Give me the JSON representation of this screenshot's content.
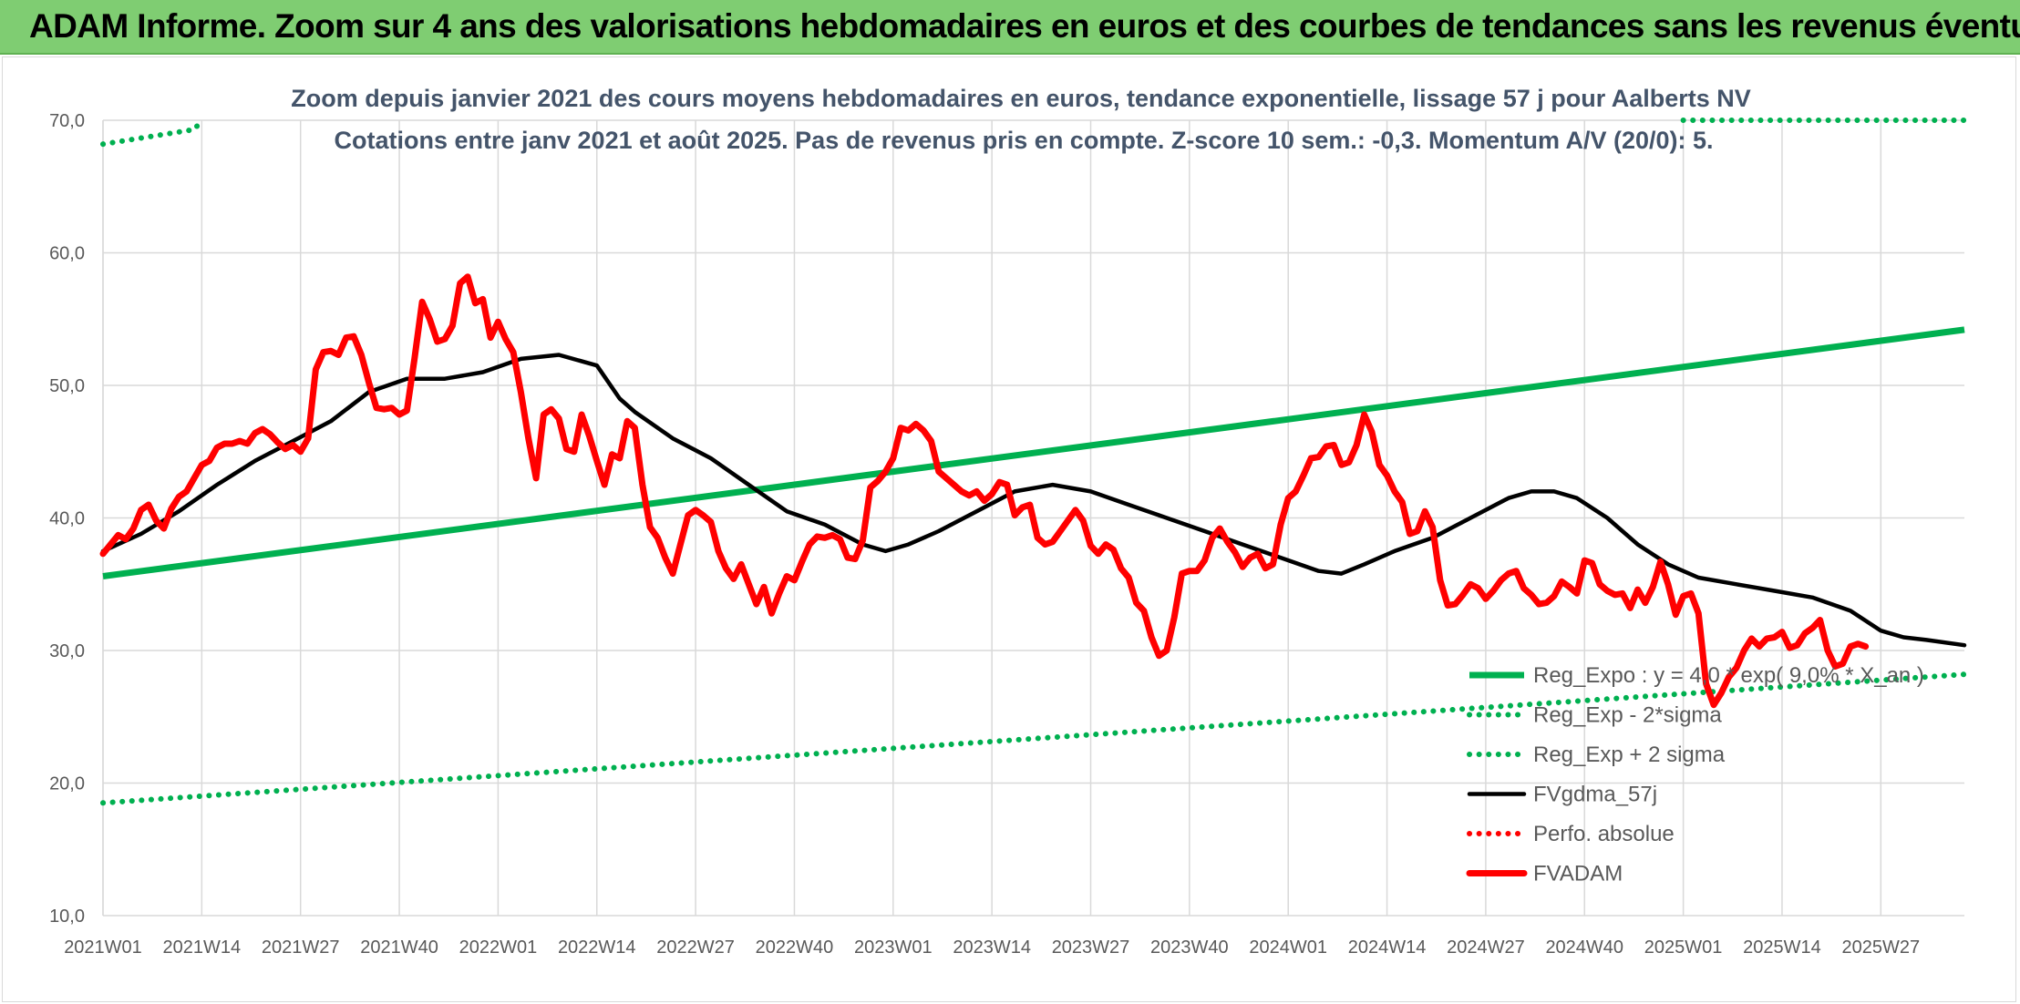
{
  "page_title": "ADAM Informe. Zoom sur 4 ans des valorisations hebdomadaires en euros et des courbes de tendances sans les revenus éventuels",
  "chart_data": {
    "type": "line",
    "title": "Zoom depuis janvier 2021 des cours moyens hebdomadaires en euros, tendance exponentielle, lissage 57 j pour Aalberts NV",
    "subtitle": "Cotations entre janv 2021 et août 2025. Pas de revenus pris en compte. Z-score 10 sem.: -0,3. Momentum A/V (20/0): 5.",
    "ylim": [
      10,
      70
    ],
    "y_ticks": [
      "10,0",
      "20,0",
      "30,0",
      "40,0",
      "50,0",
      "60,0",
      "70,0"
    ],
    "x_ticks": [
      "2021W01",
      "2021W14",
      "2021W27",
      "2021W40",
      "2022W01",
      "2022W14",
      "2022W27",
      "2022W40",
      "2023W01",
      "2023W14",
      "2023W27",
      "2023W40",
      "2024W01",
      "2024W14",
      "2024W27",
      "2024W40",
      "2025W01",
      "2025W14",
      "2025W27"
    ],
    "n_weeks": 246,
    "grid": true,
    "legend_position": "bottom-right",
    "series": [
      {
        "name": "Reg_Expo : y = 4,0 * exp( 9,0% * X_an )",
        "style": "solid-thick",
        "color": "#00b050",
        "points": [
          [
            0,
            35.6
          ],
          [
            245,
            54.2
          ]
        ]
      },
      {
        "name": "Reg_Exp - 2*sigma",
        "style": "dotted",
        "color": "#00b050",
        "points": [
          [
            0,
            18.5
          ],
          [
            245,
            28.2
          ]
        ]
      },
      {
        "name": "Reg_Exp + 2 sigma",
        "style": "dotted",
        "color": "#00b050",
        "points": [
          [
            0,
            68.2
          ],
          [
            12,
            69.3
          ],
          [
            13,
            70
          ]
        ],
        "right_segment": [
          [
            208,
            70
          ],
          [
            245,
            70
          ]
        ]
      },
      {
        "name": "FVgdma_57j",
        "style": "solid",
        "color": "#000000",
        "points": [
          [
            0,
            37.5
          ],
          [
            5,
            38.8
          ],
          [
            10,
            40.5
          ],
          [
            15,
            42.5
          ],
          [
            20,
            44.3
          ],
          [
            25,
            45.8
          ],
          [
            30,
            47.3
          ],
          [
            35,
            49.5
          ],
          [
            40,
            50.5
          ],
          [
            45,
            50.5
          ],
          [
            50,
            51.0
          ],
          [
            55,
            52.0
          ],
          [
            60,
            52.3
          ],
          [
            65,
            51.5
          ],
          [
            68,
            49.0
          ],
          [
            70,
            48.0
          ],
          [
            75,
            46.0
          ],
          [
            80,
            44.5
          ],
          [
            85,
            42.5
          ],
          [
            90,
            40.5
          ],
          [
            95,
            39.5
          ],
          [
            100,
            38.0
          ],
          [
            103,
            37.5
          ],
          [
            106,
            38.0
          ],
          [
            110,
            39.0
          ],
          [
            115,
            40.5
          ],
          [
            120,
            42.0
          ],
          [
            125,
            42.5
          ],
          [
            130,
            42.0
          ],
          [
            135,
            41.0
          ],
          [
            140,
            40.0
          ],
          [
            145,
            39.0
          ],
          [
            150,
            38.0
          ],
          [
            155,
            37.0
          ],
          [
            160,
            36.0
          ],
          [
            163,
            35.8
          ],
          [
            166,
            36.5
          ],
          [
            170,
            37.5
          ],
          [
            175,
            38.5
          ],
          [
            180,
            40.0
          ],
          [
            185,
            41.5
          ],
          [
            188,
            42.0
          ],
          [
            191,
            42.0
          ],
          [
            194,
            41.5
          ],
          [
            198,
            40.0
          ],
          [
            202,
            38.0
          ],
          [
            206,
            36.5
          ],
          [
            210,
            35.5
          ],
          [
            215,
            35.0
          ],
          [
            220,
            34.5
          ],
          [
            225,
            34.0
          ],
          [
            230,
            33.0
          ],
          [
            234,
            31.5
          ],
          [
            237,
            31.0
          ],
          [
            240,
            30.8
          ],
          [
            245,
            30.4
          ]
        ]
      },
      {
        "name": "Perfo. absolue",
        "style": "dotted",
        "color": "#ff0000",
        "points": []
      },
      {
        "name": "FVADAM",
        "style": "solid-thick",
        "color": "#ff0000",
        "points": [
          [
            0,
            37.3
          ],
          [
            1,
            38
          ],
          [
            2,
            38.7
          ],
          [
            3,
            38.4
          ],
          [
            4,
            39.2
          ],
          [
            5,
            40.6
          ],
          [
            6,
            41.0
          ],
          [
            7,
            39.8
          ],
          [
            8,
            39.2
          ],
          [
            9,
            40.7
          ],
          [
            10,
            41.6
          ],
          [
            11,
            42
          ],
          [
            12,
            43
          ],
          [
            13,
            44
          ],
          [
            14,
            44.3
          ],
          [
            15,
            45.3
          ],
          [
            16,
            45.6
          ],
          [
            17,
            45.6
          ],
          [
            18,
            45.8
          ],
          [
            19,
            45.6
          ],
          [
            20,
            46.4
          ],
          [
            21,
            46.7
          ],
          [
            22,
            46.3
          ],
          [
            23,
            45.7
          ],
          [
            24,
            45.2
          ],
          [
            25,
            45.5
          ],
          [
            26,
            45.0
          ],
          [
            27,
            46.0
          ],
          [
            28,
            51.2
          ],
          [
            29,
            52.5
          ],
          [
            30,
            52.6
          ],
          [
            31,
            52.3
          ],
          [
            32,
            53.6
          ],
          [
            33,
            53.7
          ],
          [
            34,
            52.3
          ],
          [
            35,
            50.2
          ],
          [
            36,
            48.3
          ],
          [
            37,
            48.2
          ],
          [
            38,
            48.3
          ],
          [
            39,
            47.8
          ],
          [
            40,
            48.1
          ],
          [
            41,
            52.0
          ],
          [
            42,
            56.3
          ],
          [
            43,
            55.0
          ],
          [
            44,
            53.3
          ],
          [
            45,
            53.5
          ],
          [
            46,
            54.5
          ],
          [
            47,
            57.7
          ],
          [
            48,
            58.2
          ],
          [
            49,
            56.2
          ],
          [
            50,
            56.5
          ],
          [
            51,
            53.6
          ],
          [
            52,
            54.8
          ],
          [
            53,
            53.5
          ],
          [
            54,
            52.5
          ],
          [
            55,
            49.5
          ],
          [
            56,
            46.0
          ],
          [
            57,
            43.0
          ],
          [
            58,
            47.8
          ],
          [
            59,
            48.2
          ],
          [
            60,
            47.5
          ],
          [
            61,
            45.2
          ],
          [
            62,
            45.0
          ],
          [
            63,
            47.8
          ],
          [
            64,
            46.2
          ],
          [
            65,
            44.3
          ],
          [
            66,
            42.5
          ],
          [
            67,
            44.8
          ],
          [
            68,
            44.5
          ],
          [
            69,
            47.3
          ],
          [
            70,
            46.8
          ],
          [
            71,
            42.5
          ],
          [
            72,
            39.3
          ],
          [
            73,
            38.5
          ],
          [
            74,
            37.0
          ],
          [
            75,
            35.8
          ],
          [
            76,
            38.0
          ],
          [
            77,
            40.2
          ],
          [
            78,
            40.6
          ],
          [
            79,
            40.2
          ],
          [
            80,
            39.7
          ],
          [
            81,
            37.5
          ],
          [
            82,
            36.2
          ],
          [
            83,
            35.4
          ],
          [
            84,
            36.5
          ],
          [
            85,
            35.0
          ],
          [
            86,
            33.5
          ],
          [
            87,
            34.8
          ],
          [
            88,
            32.8
          ],
          [
            89,
            34.3
          ],
          [
            90,
            35.6
          ],
          [
            91,
            35.3
          ],
          [
            92,
            36.7
          ],
          [
            93,
            38.0
          ],
          [
            94,
            38.6
          ],
          [
            95,
            38.5
          ],
          [
            96,
            38.7
          ],
          [
            97,
            38.4
          ],
          [
            98,
            37.0
          ],
          [
            99,
            36.9
          ],
          [
            100,
            38.3
          ],
          [
            101,
            42.3
          ],
          [
            102,
            42.8
          ],
          [
            103,
            43.5
          ],
          [
            104,
            44.5
          ],
          [
            105,
            46.8
          ],
          [
            106,
            46.6
          ],
          [
            107,
            47.1
          ],
          [
            108,
            46.6
          ],
          [
            109,
            45.8
          ],
          [
            110,
            43.5
          ],
          [
            111,
            43.0
          ],
          [
            112,
            42.5
          ],
          [
            113,
            42.0
          ],
          [
            114,
            41.7
          ],
          [
            115,
            42.0
          ],
          [
            116,
            41.3
          ],
          [
            117,
            41.8
          ],
          [
            118,
            42.7
          ],
          [
            119,
            42.5
          ],
          [
            120,
            40.2
          ],
          [
            121,
            40.8
          ],
          [
            122,
            41.0
          ],
          [
            123,
            38.5
          ],
          [
            124,
            38.0
          ],
          [
            125,
            38.2
          ],
          [
            126,
            39.0
          ],
          [
            127,
            39.8
          ],
          [
            128,
            40.6
          ],
          [
            129,
            39.8
          ],
          [
            130,
            37.9
          ],
          [
            131,
            37.3
          ],
          [
            132,
            38.0
          ],
          [
            133,
            37.6
          ],
          [
            134,
            36.2
          ],
          [
            135,
            35.5
          ],
          [
            136,
            33.6
          ],
          [
            137,
            33.0
          ],
          [
            138,
            31.0
          ],
          [
            139,
            29.6
          ],
          [
            140,
            30.0
          ],
          [
            141,
            32.5
          ],
          [
            142,
            35.8
          ],
          [
            143,
            36.0
          ],
          [
            144,
            36.0
          ],
          [
            145,
            36.8
          ],
          [
            146,
            38.5
          ],
          [
            147,
            39.2
          ],
          [
            148,
            38.2
          ],
          [
            149,
            37.4
          ],
          [
            150,
            36.3
          ],
          [
            151,
            37.0
          ],
          [
            152,
            37.3
          ],
          [
            153,
            36.2
          ],
          [
            154,
            36.5
          ],
          [
            155,
            39.5
          ],
          [
            156,
            41.5
          ],
          [
            157,
            42.0
          ],
          [
            158,
            43.2
          ],
          [
            159,
            44.5
          ],
          [
            160,
            44.6
          ],
          [
            161,
            45.4
          ],
          [
            162,
            45.5
          ],
          [
            163,
            44.0
          ],
          [
            164,
            44.2
          ],
          [
            165,
            45.5
          ],
          [
            166,
            47.8
          ],
          [
            167,
            46.5
          ],
          [
            168,
            44.0
          ],
          [
            169,
            43.2
          ],
          [
            170,
            42.0
          ],
          [
            171,
            41.2
          ],
          [
            172,
            38.8
          ],
          [
            173,
            39.0
          ],
          [
            174,
            40.5
          ],
          [
            175,
            39.3
          ],
          [
            176,
            35.3
          ],
          [
            177,
            33.4
          ],
          [
            178,
            33.5
          ],
          [
            179,
            34.2
          ],
          [
            180,
            35.0
          ],
          [
            181,
            34.7
          ],
          [
            182,
            33.9
          ],
          [
            183,
            34.5
          ],
          [
            184,
            35.3
          ],
          [
            185,
            35.8
          ],
          [
            186,
            36.0
          ],
          [
            187,
            34.7
          ],
          [
            188,
            34.2
          ],
          [
            189,
            33.5
          ],
          [
            190,
            33.6
          ],
          [
            191,
            34.1
          ],
          [
            192,
            35.2
          ],
          [
            193,
            34.8
          ],
          [
            194,
            34.3
          ],
          [
            195,
            36.8
          ],
          [
            196,
            36.6
          ],
          [
            197,
            35.0
          ],
          [
            198,
            34.5
          ],
          [
            199,
            34.2
          ],
          [
            200,
            34.3
          ],
          [
            201,
            33.2
          ],
          [
            202,
            34.6
          ],
          [
            203,
            33.6
          ],
          [
            204,
            34.8
          ],
          [
            205,
            36.7
          ],
          [
            206,
            35.0
          ],
          [
            207,
            32.7
          ],
          [
            208,
            34.1
          ],
          [
            209,
            34.3
          ],
          [
            210,
            32.8
          ],
          [
            211,
            27.5
          ],
          [
            212,
            25.9
          ],
          [
            213,
            26.8
          ],
          [
            214,
            28.0
          ],
          [
            215,
            28.7
          ],
          [
            216,
            30.0
          ],
          [
            217,
            30.9
          ],
          [
            218,
            30.3
          ],
          [
            219,
            30.9
          ],
          [
            220,
            31.0
          ],
          [
            221,
            31.4
          ],
          [
            222,
            30.2
          ],
          [
            223,
            30.4
          ],
          [
            224,
            31.3
          ],
          [
            225,
            31.7
          ],
          [
            226,
            32.3
          ],
          [
            227,
            30.0
          ],
          [
            228,
            28.8
          ],
          [
            229,
            29.0
          ],
          [
            230,
            30.3
          ],
          [
            231,
            30.5
          ],
          [
            232,
            30.3
          ]
        ]
      }
    ]
  }
}
